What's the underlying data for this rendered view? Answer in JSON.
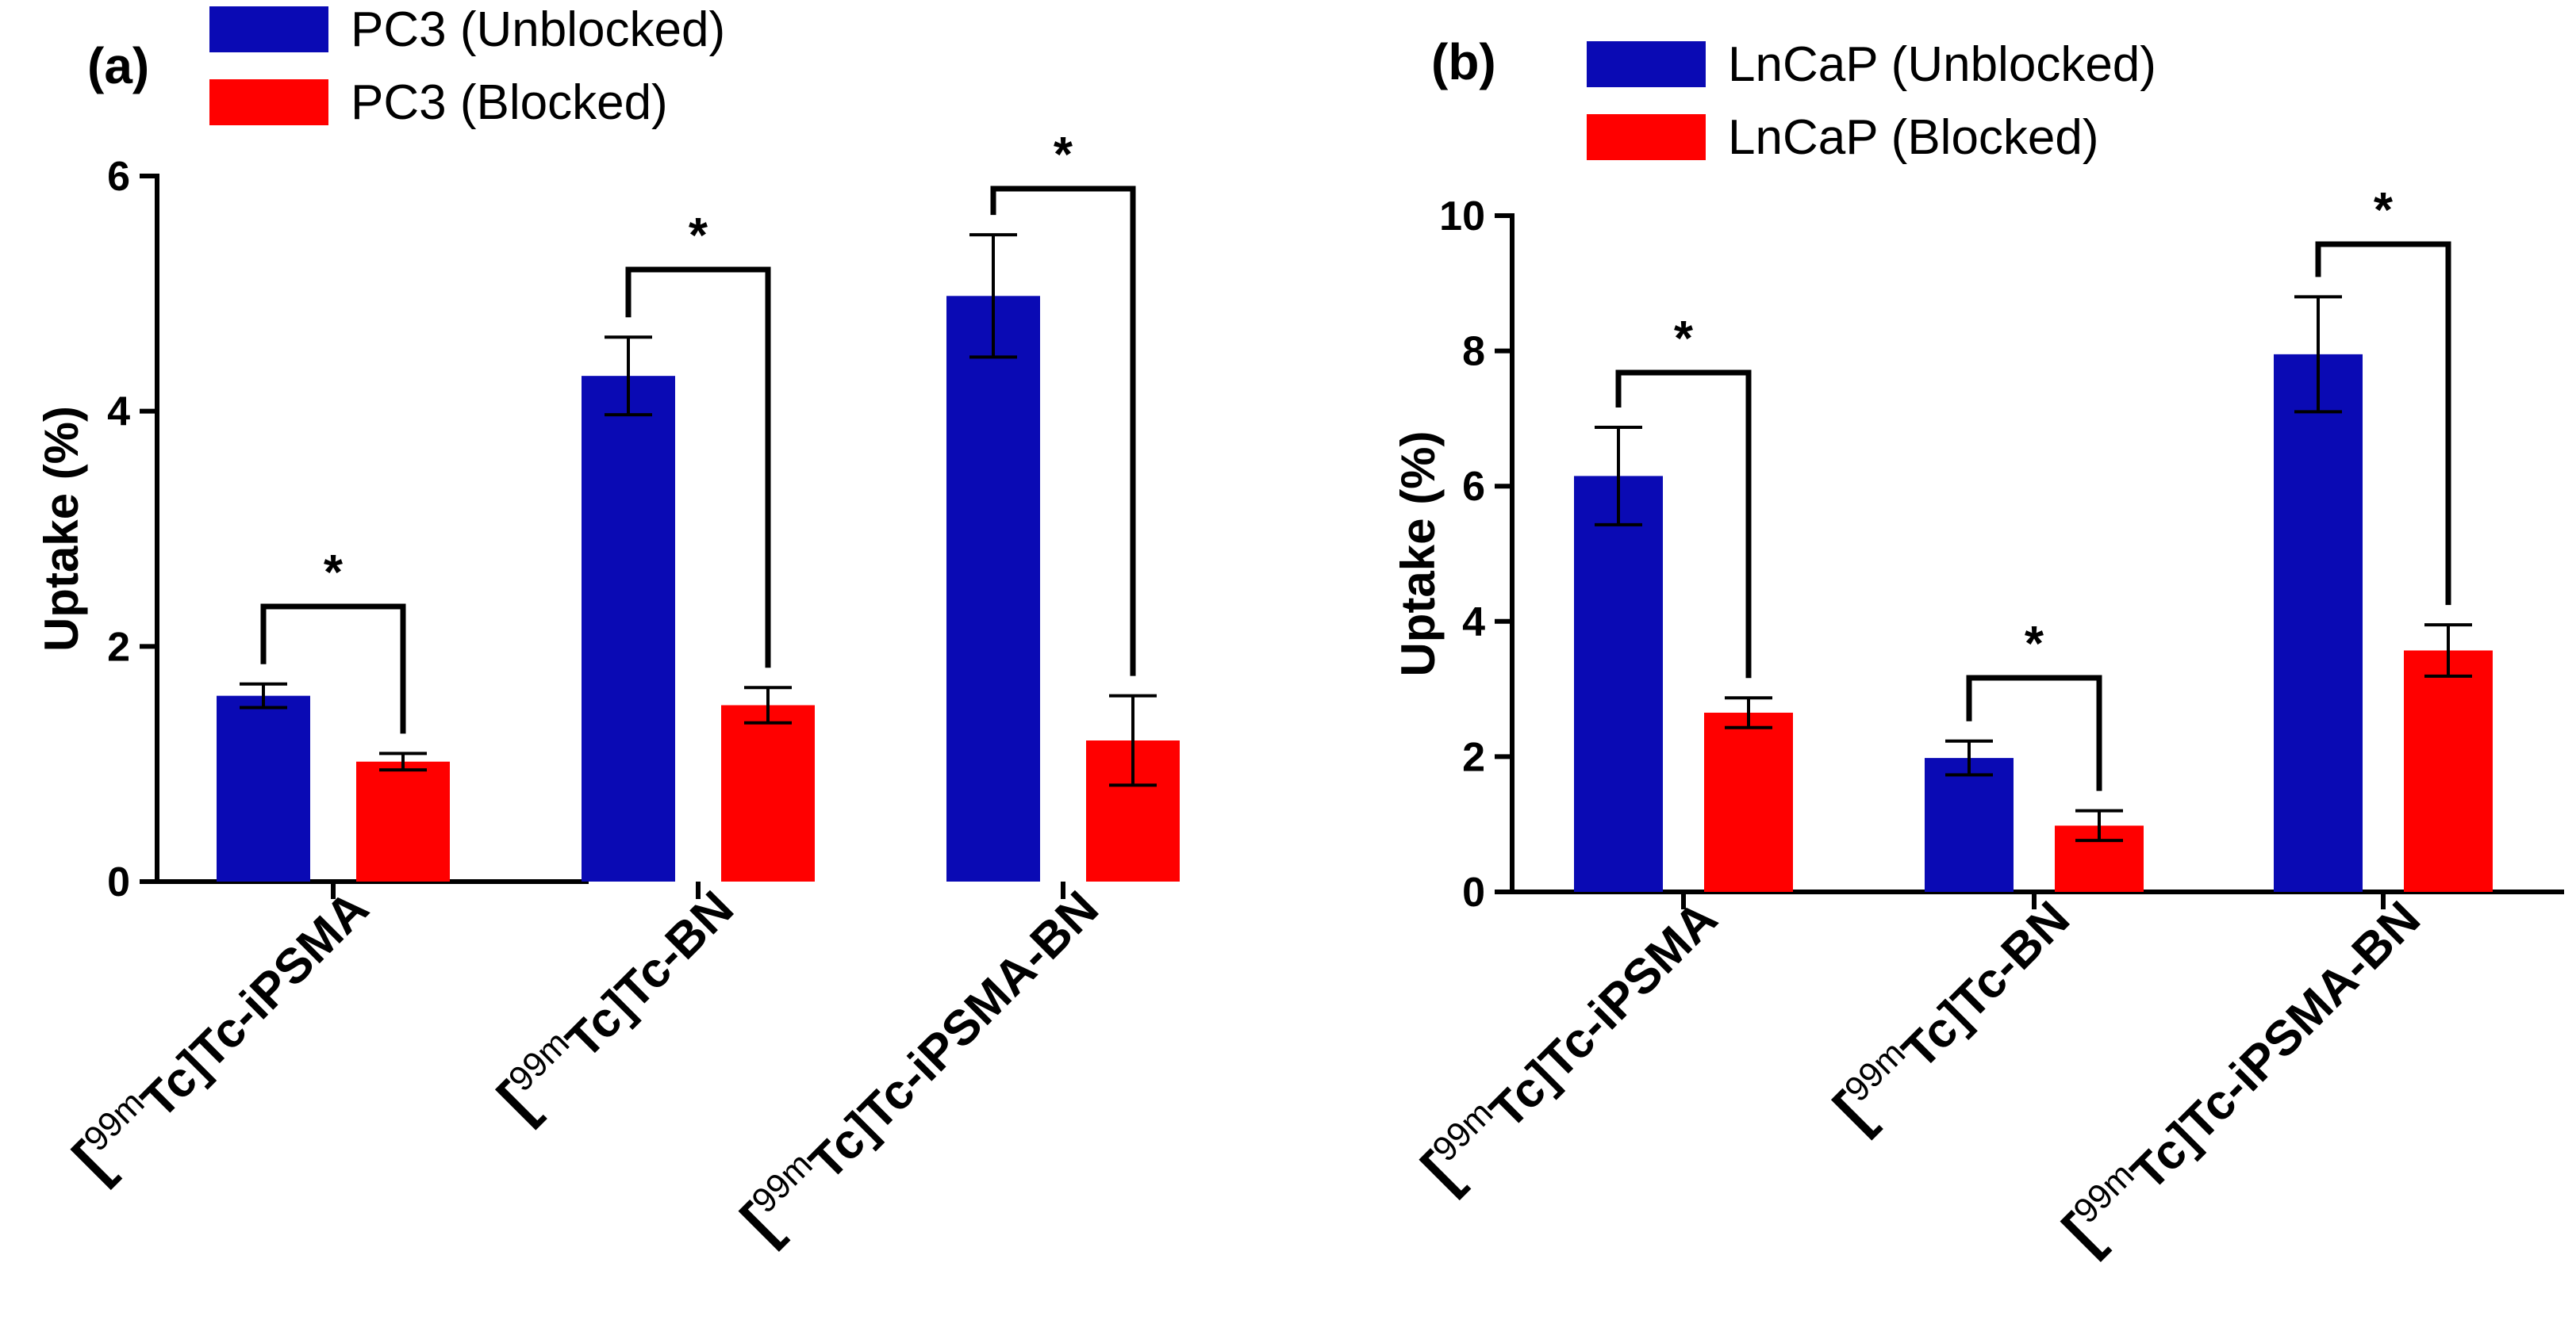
{
  "chart_data": [
    {
      "type": "bar",
      "panel_label": "(a)",
      "categories": [
        {
          "sup": "99m",
          "text": "Tc]Tc-iPSMA"
        },
        {
          "sup": "99m",
          "text": "Tc]Tc-BN"
        },
        {
          "sup": "99m",
          "text": "Tc]Tc-iPSMA-BN"
        }
      ],
      "series": [
        {
          "name": "PC3 (Unblocked)",
          "color": "#0a0ab4",
          "values": [
            1.58,
            4.3,
            4.98
          ],
          "errors": [
            0.1,
            0.33,
            0.52
          ]
        },
        {
          "name": "PC3 (Blocked)",
          "color": "#ff0000",
          "values": [
            1.02,
            1.5,
            1.2
          ],
          "errors": [
            0.07,
            0.15,
            0.38
          ]
        }
      ],
      "significance": [
        "*",
        "*",
        "*"
      ],
      "ylabel": "Uptake (%)",
      "ylim": [
        0,
        6
      ],
      "yticks": [
        0,
        2,
        4,
        6
      ]
    },
    {
      "type": "bar",
      "panel_label": "(b)",
      "categories": [
        {
          "sup": "99m",
          "text": "Tc]Tc-iPSMA"
        },
        {
          "sup": "99m",
          "text": "Tc]Tc-BN"
        },
        {
          "sup": "99m",
          "text": "Tc]Tc-iPSMA-BN"
        }
      ],
      "series": [
        {
          "name": "LnCaP (Unblocked)",
          "color": "#0a0ab4",
          "values": [
            6.15,
            1.98,
            7.95
          ],
          "errors": [
            0.72,
            0.25,
            0.85
          ]
        },
        {
          "name": "LnCaP (Blocked)",
          "color": "#ff0000",
          "values": [
            2.65,
            0.98,
            3.57
          ],
          "errors": [
            0.22,
            0.22,
            0.38
          ]
        }
      ],
      "significance": [
        "*",
        "*",
        "*"
      ],
      "ylabel": "Uptake (%)",
      "ylim": [
        0,
        10
      ],
      "yticks": [
        0,
        2,
        4,
        6,
        8,
        10
      ]
    }
  ]
}
